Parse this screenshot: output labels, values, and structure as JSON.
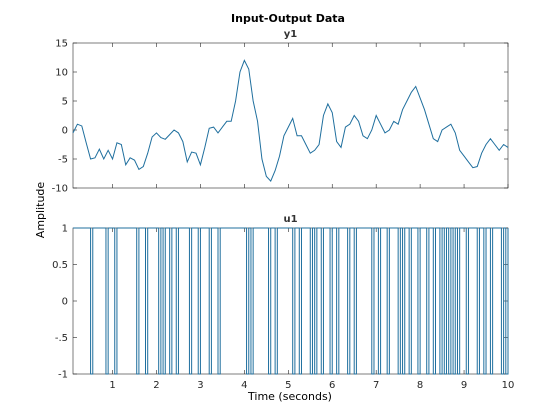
{
  "chart_data": {
    "type": "line",
    "title": "Input-Output Data",
    "xlabel": "Time (seconds)",
    "ylabel": "Amplitude",
    "series_color": "#1f6f9e",
    "xlim": [
      0.1,
      10
    ],
    "panels": [
      {
        "subtitle": "y1",
        "ylim": [
          -10,
          15
        ],
        "yticks": [
          -10,
          -5,
          0,
          5,
          10,
          15
        ],
        "xticks": [],
        "x": [
          0.1,
          0.2,
          0.3,
          0.4,
          0.5,
          0.6,
          0.7,
          0.8,
          0.9,
          1.0,
          1.1,
          1.2,
          1.3,
          1.4,
          1.5,
          1.6,
          1.7,
          1.8,
          1.9,
          2.0,
          2.1,
          2.2,
          2.3,
          2.4,
          2.5,
          2.6,
          2.7,
          2.8,
          2.9,
          3.0,
          3.1,
          3.2,
          3.3,
          3.4,
          3.5,
          3.6,
          3.7,
          3.8,
          3.9,
          4.0,
          4.1,
          4.2,
          4.3,
          4.4,
          4.5,
          4.6,
          4.7,
          4.8,
          4.9,
          5.0,
          5.1,
          5.2,
          5.3,
          5.4,
          5.5,
          5.6,
          5.7,
          5.8,
          5.9,
          6.0,
          6.1,
          6.2,
          6.3,
          6.4,
          6.5,
          6.6,
          6.7,
          6.8,
          6.9,
          7.0,
          7.1,
          7.2,
          7.3,
          7.4,
          7.5,
          7.6,
          7.7,
          7.8,
          7.9,
          8.0,
          8.1,
          8.2,
          8.3,
          8.4,
          8.5,
          8.6,
          8.7,
          8.8,
          8.9,
          9.0,
          9.1,
          9.2,
          9.3,
          9.4,
          9.5,
          9.6,
          9.7,
          9.8,
          9.9,
          10.0
        ],
        "y": [
          -0.5,
          1.0,
          0.7,
          -2.2,
          -5.0,
          -4.8,
          -3.3,
          -5.0,
          -3.5,
          -5.0,
          -2.2,
          -2.5,
          -6.0,
          -4.8,
          -5.2,
          -6.8,
          -6.3,
          -4.0,
          -1.2,
          -0.5,
          -1.3,
          -1.6,
          -0.8,
          0.0,
          -0.5,
          -2.0,
          -5.5,
          -3.8,
          -4.0,
          -6.0,
          -3.0,
          0.3,
          0.5,
          -0.5,
          0.5,
          1.5,
          1.5,
          5.0,
          10.0,
          12.0,
          10.5,
          5.0,
          1.5,
          -5.0,
          -8.0,
          -8.8,
          -7.0,
          -4.5,
          -1.0,
          0.5,
          2.0,
          -1.0,
          -1.0,
          -2.5,
          -4.0,
          -3.5,
          -2.5,
          2.5,
          4.5,
          3.0,
          -2.0,
          -3.0,
          0.5,
          1.0,
          2.5,
          1.5,
          -1.0,
          -1.5,
          0.0,
          2.5,
          1.0,
          -0.5,
          0.0,
          1.5,
          1.0,
          3.5,
          5.0,
          6.5,
          7.5,
          5.5,
          3.5,
          1.0,
          -1.5,
          -2.0,
          0.0,
          0.5,
          1.0,
          -0.5,
          -3.5,
          -4.5,
          -5.5,
          -6.5,
          -6.3,
          -4.0,
          -2.5,
          -1.5,
          -2.5,
          -3.5,
          -2.5,
          -3.0
        ]
      },
      {
        "subtitle": "u1",
        "ylim": [
          -1,
          1
        ],
        "yticks": [
          -1,
          -0.5,
          0,
          0.5,
          1
        ],
        "xticks": [
          1,
          2,
          3,
          4,
          5,
          6,
          7,
          8,
          9,
          10
        ],
        "step": true,
        "start_value": 1,
        "switch_times": [
          0.5,
          0.55,
          0.85,
          0.9,
          1.05,
          1.1,
          1.55,
          1.6,
          1.75,
          1.8,
          2.05,
          2.1,
          2.15,
          2.2,
          2.3,
          2.35,
          2.45,
          2.5,
          2.75,
          2.8,
          2.95,
          3.0,
          3.2,
          3.25,
          3.4,
          3.45,
          4.05,
          4.1,
          4.15,
          4.2,
          4.55,
          4.6,
          4.7,
          4.75,
          5.1,
          5.15,
          5.25,
          5.3,
          5.5,
          5.55,
          5.6,
          5.65,
          5.75,
          5.8,
          5.95,
          6.0,
          6.1,
          6.15,
          6.35,
          6.4,
          6.5,
          6.55,
          6.9,
          6.95,
          7.05,
          7.1,
          7.25,
          7.3,
          7.5,
          7.55,
          7.6,
          7.65,
          7.75,
          7.8,
          7.95,
          8.0,
          8.15,
          8.2,
          8.3,
          8.35,
          8.45,
          8.5,
          8.55,
          8.6,
          8.65,
          8.7,
          8.75,
          8.8,
          8.85,
          8.9,
          9.05,
          9.1,
          9.3,
          9.35,
          9.45,
          9.5,
          9.6,
          9.65,
          9.85,
          9.9,
          9.95,
          10.0
        ]
      }
    ]
  }
}
